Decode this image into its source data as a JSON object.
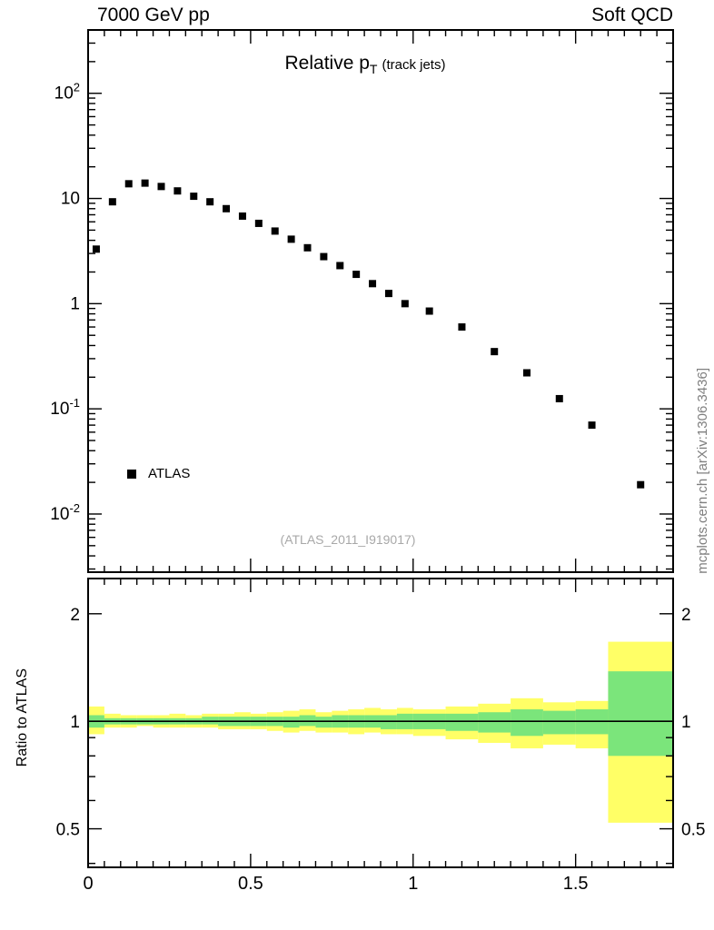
{
  "header": {
    "left": "7000 GeV pp",
    "right": "Soft QCD"
  },
  "title": {
    "main": "Relative p",
    "sub": "T",
    "suffix": "(track jets)"
  },
  "legend": {
    "label": "ATLAS"
  },
  "watermark": "(ATLAS_2011_I919017)",
  "side_note": "mcplots.cern.ch [arXiv:1306.3436]",
  "ratio_axis_label": "Ratio to ATLAS",
  "colors": {
    "marker": "#000000",
    "frame": "#000000",
    "band_outer": "#ffff66",
    "band_inner": "#7be57b",
    "watermark_text": "#a8a8a8",
    "side_note_text": "#7f7f7f"
  },
  "chart_data": {
    "type": "scatter",
    "title": "Relative pT (track jets)",
    "x": {
      "range": [
        0,
        1.8
      ],
      "major_ticks": [
        0,
        0.5,
        1,
        1.5
      ],
      "tick_labels": [
        "0",
        "0.5",
        "1",
        "1.5"
      ],
      "minor_step": 0.05
    },
    "main_panel": {
      "yscale": "log",
      "yrange": [
        0.0028,
        400
      ],
      "ytick_exponents": [
        2,
        1,
        0,
        -1,
        -2
      ],
      "series": [
        {
          "name": "ATLAS",
          "marker": "filled-square",
          "color": "#000000",
          "points": [
            [
              0.025,
              3.3
            ],
            [
              0.075,
              9.3
            ],
            [
              0.125,
              13.8
            ],
            [
              0.175,
              14.0
            ],
            [
              0.225,
              13.0
            ],
            [
              0.275,
              11.8
            ],
            [
              0.325,
              10.5
            ],
            [
              0.375,
              9.3
            ],
            [
              0.425,
              8.0
            ],
            [
              0.475,
              6.8
            ],
            [
              0.525,
              5.8
            ],
            [
              0.575,
              4.9
            ],
            [
              0.625,
              4.1
            ],
            [
              0.675,
              3.4
            ],
            [
              0.725,
              2.8
            ],
            [
              0.775,
              2.3
            ],
            [
              0.825,
              1.9
            ],
            [
              0.875,
              1.55
            ],
            [
              0.925,
              1.25
            ],
            [
              0.975,
              1.0
            ],
            [
              1.05,
              0.85
            ],
            [
              1.15,
              0.6
            ],
            [
              1.25,
              0.35
            ],
            [
              1.35,
              0.22
            ],
            [
              1.45,
              0.125
            ],
            [
              1.55,
              0.07
            ],
            [
              1.7,
              0.019
            ]
          ]
        }
      ]
    },
    "ratio_panel": {
      "yscale": "log",
      "yrange": [
        0.39,
        2.51
      ],
      "yticks": [
        0.5,
        1,
        2
      ],
      "ytick_labels": [
        "0.5",
        "1",
        "2"
      ],
      "reference_line": 1.0,
      "bands": [
        {
          "x0": 0.0,
          "x1": 0.05,
          "outer": [
            0.92,
            1.1
          ],
          "inner": [
            0.96,
            1.04
          ]
        },
        {
          "x0": 0.05,
          "x1": 0.1,
          "outer": [
            0.96,
            1.05
          ],
          "inner": [
            0.98,
            1.02
          ]
        },
        {
          "x0": 0.1,
          "x1": 0.15,
          "outer": [
            0.96,
            1.04
          ],
          "inner": [
            0.98,
            1.02
          ]
        },
        {
          "x0": 0.15,
          "x1": 0.2,
          "outer": [
            0.97,
            1.04
          ],
          "inner": [
            0.98,
            1.02
          ]
        },
        {
          "x0": 0.2,
          "x1": 0.25,
          "outer": [
            0.96,
            1.04
          ],
          "inner": [
            0.98,
            1.02
          ]
        },
        {
          "x0": 0.25,
          "x1": 0.3,
          "outer": [
            0.96,
            1.05
          ],
          "inner": [
            0.98,
            1.02
          ]
        },
        {
          "x0": 0.3,
          "x1": 0.35,
          "outer": [
            0.96,
            1.04
          ],
          "inner": [
            0.98,
            1.02
          ]
        },
        {
          "x0": 0.35,
          "x1": 0.4,
          "outer": [
            0.96,
            1.05
          ],
          "inner": [
            0.98,
            1.03
          ]
        },
        {
          "x0": 0.4,
          "x1": 0.45,
          "outer": [
            0.95,
            1.05
          ],
          "inner": [
            0.97,
            1.03
          ]
        },
        {
          "x0": 0.45,
          "x1": 0.5,
          "outer": [
            0.95,
            1.06
          ],
          "inner": [
            0.97,
            1.03
          ]
        },
        {
          "x0": 0.5,
          "x1": 0.55,
          "outer": [
            0.95,
            1.05
          ],
          "inner": [
            0.97,
            1.03
          ]
        },
        {
          "x0": 0.55,
          "x1": 0.6,
          "outer": [
            0.94,
            1.06
          ],
          "inner": [
            0.97,
            1.03
          ]
        },
        {
          "x0": 0.6,
          "x1": 0.65,
          "outer": [
            0.93,
            1.07
          ],
          "inner": [
            0.96,
            1.03
          ]
        },
        {
          "x0": 0.65,
          "x1": 0.7,
          "outer": [
            0.94,
            1.08
          ],
          "inner": [
            0.97,
            1.04
          ]
        },
        {
          "x0": 0.7,
          "x1": 0.75,
          "outer": [
            0.93,
            1.06
          ],
          "inner": [
            0.96,
            1.03
          ]
        },
        {
          "x0": 0.75,
          "x1": 0.8,
          "outer": [
            0.93,
            1.07
          ],
          "inner": [
            0.96,
            1.04
          ]
        },
        {
          "x0": 0.8,
          "x1": 0.85,
          "outer": [
            0.92,
            1.08
          ],
          "inner": [
            0.96,
            1.04
          ]
        },
        {
          "x0": 0.85,
          "x1": 0.9,
          "outer": [
            0.93,
            1.09
          ],
          "inner": [
            0.96,
            1.04
          ]
        },
        {
          "x0": 0.9,
          "x1": 0.95,
          "outer": [
            0.92,
            1.08
          ],
          "inner": [
            0.95,
            1.04
          ]
        },
        {
          "x0": 0.95,
          "x1": 1.0,
          "outer": [
            0.92,
            1.09
          ],
          "inner": [
            0.95,
            1.05
          ]
        },
        {
          "x0": 1.0,
          "x1": 1.1,
          "outer": [
            0.91,
            1.08
          ],
          "inner": [
            0.95,
            1.05
          ]
        },
        {
          "x0": 1.1,
          "x1": 1.2,
          "outer": [
            0.89,
            1.1
          ],
          "inner": [
            0.94,
            1.05
          ]
        },
        {
          "x0": 1.2,
          "x1": 1.3,
          "outer": [
            0.87,
            1.12
          ],
          "inner": [
            0.93,
            1.06
          ]
        },
        {
          "x0": 1.3,
          "x1": 1.4,
          "outer": [
            0.84,
            1.16
          ],
          "inner": [
            0.91,
            1.08
          ]
        },
        {
          "x0": 1.4,
          "x1": 1.5,
          "outer": [
            0.86,
            1.13
          ],
          "inner": [
            0.92,
            1.07
          ]
        },
        {
          "x0": 1.5,
          "x1": 1.6,
          "outer": [
            0.84,
            1.14
          ],
          "inner": [
            0.92,
            1.08
          ]
        },
        {
          "x0": 1.6,
          "x1": 1.8,
          "outer": [
            0.52,
            1.67
          ],
          "inner": [
            0.8,
            1.38
          ]
        }
      ]
    }
  }
}
